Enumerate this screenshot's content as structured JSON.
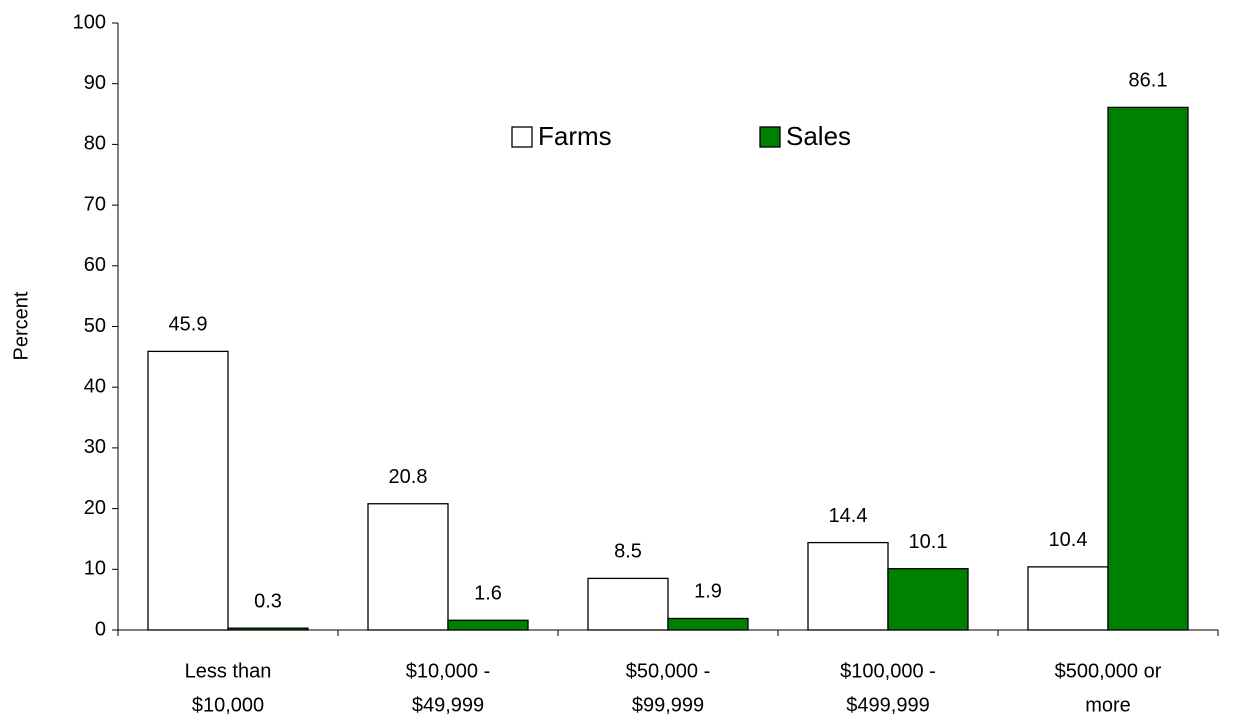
{
  "chart_data": {
    "type": "bar",
    "y_label": "Percent",
    "categories": [
      [
        "Less than",
        "$10,000"
      ],
      [
        "$10,000 -",
        "$49,999"
      ],
      [
        "$50,000 -",
        "$99,999"
      ],
      [
        "$100,000 -",
        "$499,999"
      ],
      [
        "$500,000 or",
        "more"
      ]
    ],
    "series": [
      {
        "name": "Farms",
        "color": "#ffffff",
        "values": [
          45.9,
          20.8,
          8.5,
          14.4,
          10.4
        ]
      },
      {
        "name": "Sales",
        "color": "#008000",
        "values": [
          0.3,
          1.6,
          1.9,
          10.1,
          86.1
        ]
      }
    ],
    "ylim": [
      0,
      100
    ],
    "yticks": [
      0,
      10,
      20,
      30,
      40,
      50,
      60,
      70,
      80,
      90,
      100
    ],
    "grid": false,
    "legend": "top"
  }
}
